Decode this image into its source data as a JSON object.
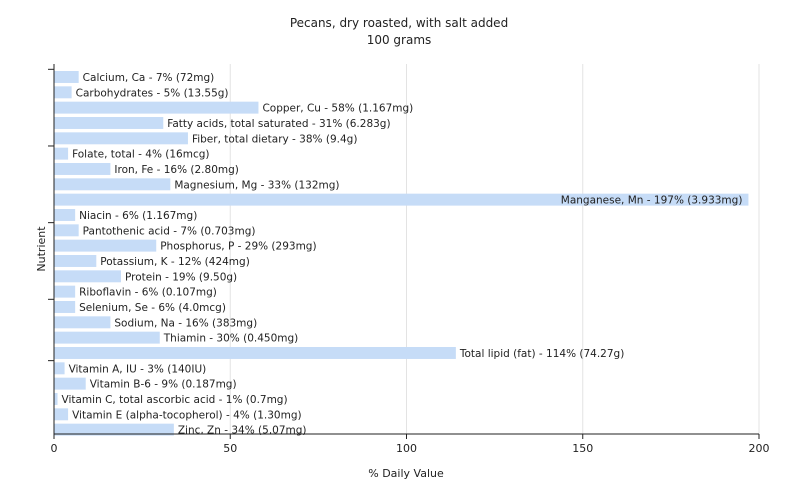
{
  "chart_data": {
    "type": "bar",
    "orientation": "horizontal",
    "title": "Pecans, dry roasted, with salt added",
    "subtitle": "100 grams",
    "xlabel": "% Daily Value",
    "ylabel": "Nutrient",
    "xlim": [
      0,
      200
    ],
    "xticks": [
      0,
      50,
      100,
      150,
      200
    ],
    "grid": true,
    "bar_color": "#c6dcf7",
    "bars": [
      {
        "label": "Calcium, Ca - 7% (72mg)",
        "value": 7
      },
      {
        "label": "Carbohydrates - 5% (13.55g)",
        "value": 5
      },
      {
        "label": "Copper, Cu - 58% (1.167mg)",
        "value": 58
      },
      {
        "label": "Fatty acids, total saturated - 31% (6.283g)",
        "value": 31
      },
      {
        "label": "Fiber, total dietary - 38% (9.4g)",
        "value": 38
      },
      {
        "label": "Folate, total - 4% (16mcg)",
        "value": 4
      },
      {
        "label": "Iron, Fe - 16% (2.80mg)",
        "value": 16
      },
      {
        "label": "Magnesium, Mg - 33% (132mg)",
        "value": 33
      },
      {
        "label": "Manganese, Mn - 197% (3.933mg)",
        "value": 197
      },
      {
        "label": "Niacin - 6% (1.167mg)",
        "value": 6
      },
      {
        "label": "Pantothenic acid - 7% (0.703mg)",
        "value": 7
      },
      {
        "label": "Phosphorus, P - 29% (293mg)",
        "value": 29
      },
      {
        "label": "Potassium, K - 12% (424mg)",
        "value": 12
      },
      {
        "label": "Protein - 19% (9.50g)",
        "value": 19
      },
      {
        "label": "Riboflavin - 6% (0.107mg)",
        "value": 6
      },
      {
        "label": "Selenium, Se - 6% (4.0mcg)",
        "value": 6
      },
      {
        "label": "Sodium, Na - 16% (383mg)",
        "value": 16
      },
      {
        "label": "Thiamin - 30% (0.450mg)",
        "value": 30
      },
      {
        "label": "Total lipid (fat) - 114% (74.27g)",
        "value": 114
      },
      {
        "label": "Vitamin A, IU - 3% (140IU)",
        "value": 3
      },
      {
        "label": "Vitamin B-6 - 9% (0.187mg)",
        "value": 9
      },
      {
        "label": "Vitamin C, total ascorbic acid - 1% (0.7mg)",
        "value": 1
      },
      {
        "label": "Vitamin E (alpha-tocopherol) - 4% (1.30mg)",
        "value": 4
      },
      {
        "label": "Zinc, Zn - 34% (5.07mg)",
        "value": 34
      }
    ]
  }
}
